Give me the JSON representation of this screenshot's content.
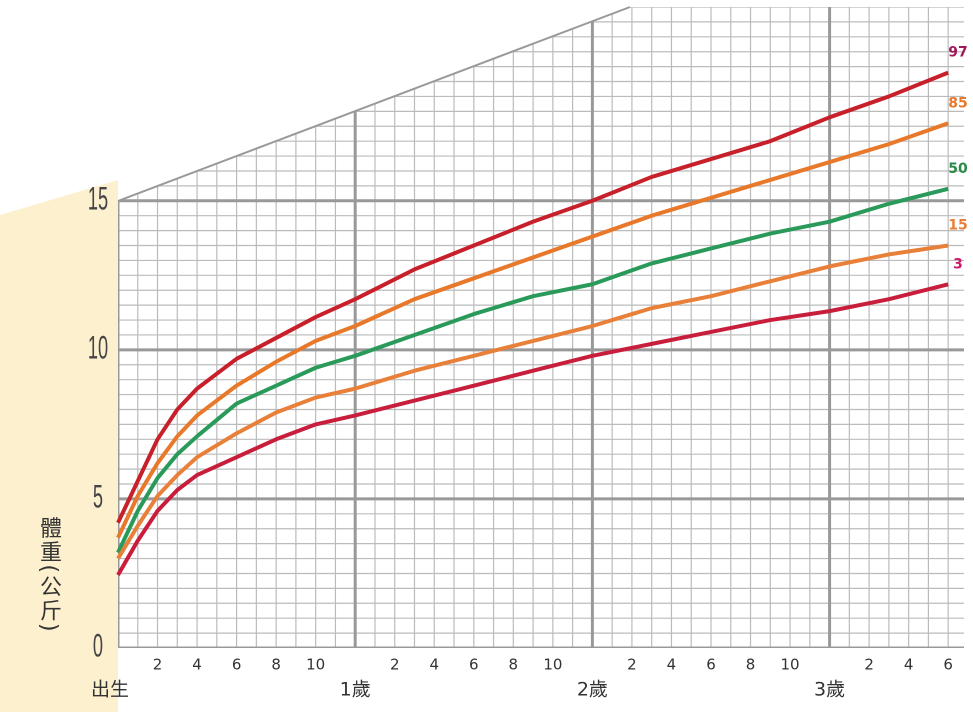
{
  "chart_data": {
    "type": "line",
    "y_label": "體重(公斤)",
    "x": [
      0,
      1,
      2,
      3,
      4,
      6,
      8,
      10,
      12,
      15,
      18,
      21,
      24,
      27,
      30,
      33,
      36,
      39,
      42
    ],
    "series": [
      {
        "name": "97",
        "color": "#c8202a",
        "label_color": "#a0185a",
        "values": [
          4.2,
          5.6,
          7.0,
          8.0,
          8.7,
          9.7,
          10.4,
          11.1,
          11.7,
          12.7,
          13.5,
          14.3,
          15.0,
          15.8,
          16.4,
          17.0,
          17.8,
          18.5,
          19.3
        ]
      },
      {
        "name": "85",
        "color": "#e8782a",
        "label_color": "#e8782a",
        "values": [
          3.7,
          5.1,
          6.2,
          7.1,
          7.8,
          8.8,
          9.6,
          10.3,
          10.8,
          11.7,
          12.4,
          13.1,
          13.8,
          14.5,
          15.1,
          15.7,
          16.3,
          16.9,
          17.6
        ]
      },
      {
        "name": "50",
        "color": "#2a9a5a",
        "label_color": "#2a8a4a",
        "values": [
          3.2,
          4.6,
          5.7,
          6.5,
          7.1,
          8.2,
          8.8,
          9.4,
          9.8,
          10.5,
          11.2,
          11.8,
          12.2,
          12.9,
          13.4,
          13.9,
          14.3,
          14.9,
          15.4
        ]
      },
      {
        "name": "15",
        "color": "#e8803a",
        "label_color": "#e8803a",
        "values": [
          3.0,
          4.1,
          5.1,
          5.8,
          6.4,
          7.2,
          7.9,
          8.4,
          8.7,
          9.3,
          9.8,
          10.3,
          10.8,
          11.4,
          11.8,
          12.3,
          12.8,
          13.2,
          13.5
        ]
      },
      {
        "name": "3",
        "color": "#c81e3c",
        "label_color": "#c81e6c",
        "values": [
          2.45,
          3.6,
          4.6,
          5.3,
          5.8,
          6.4,
          7.0,
          7.5,
          7.8,
          8.3,
          8.8,
          9.3,
          9.8,
          10.2,
          10.6,
          11.0,
          11.3,
          11.7,
          12.2
        ]
      }
    ],
    "xlim": [
      0,
      42.8
    ],
    "ylim": [
      0,
      21.5
    ],
    "xticks": [
      {
        "value": 0,
        "label": "出生"
      },
      {
        "value": 12,
        "label": "1歲"
      },
      {
        "value": 24,
        "label": "2歲"
      },
      {
        "value": 36,
        "label": "3歲"
      }
    ],
    "x_minor_ticks": [
      {
        "value": 2,
        "label": "2"
      },
      {
        "value": 4,
        "label": "4"
      },
      {
        "value": 6,
        "label": "6"
      },
      {
        "value": 8,
        "label": "8"
      },
      {
        "value": 10,
        "label": "10"
      },
      {
        "value": 14,
        "label": "2"
      },
      {
        "value": 16,
        "label": "4"
      },
      {
        "value": 18,
        "label": "6"
      },
      {
        "value": 20,
        "label": "8"
      },
      {
        "value": 22,
        "label": "10"
      },
      {
        "value": 26,
        "label": "2"
      },
      {
        "value": 28,
        "label": "4"
      },
      {
        "value": 30,
        "label": "6"
      },
      {
        "value": 32,
        "label": "8"
      },
      {
        "value": 34,
        "label": "10"
      },
      {
        "value": 38,
        "label": "2"
      },
      {
        "value": 40,
        "label": "4"
      },
      {
        "value": 42,
        "label": "6"
      }
    ],
    "yticks": [
      0,
      5,
      10,
      15
    ],
    "grid": true,
    "minor_grid": {
      "x": 1,
      "y": 0.5
    }
  }
}
